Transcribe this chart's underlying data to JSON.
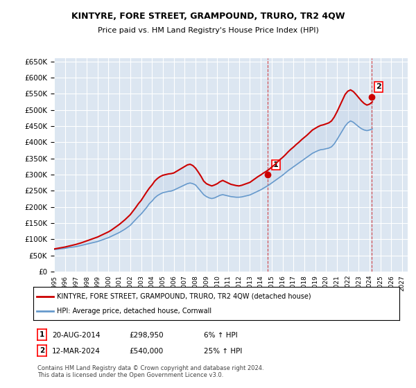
{
  "title": "KINTYRE, FORE STREET, GRAMPOUND, TRURO, TR2 4QW",
  "subtitle": "Price paid vs. HM Land Registry's House Price Index (HPI)",
  "ylim": [
    0,
    660000
  ],
  "yticks": [
    0,
    50000,
    100000,
    150000,
    200000,
    250000,
    300000,
    350000,
    400000,
    450000,
    500000,
    550000,
    600000,
    650000
  ],
  "xlim_start": 1995.0,
  "xlim_end": 2027.5,
  "xticks": [
    1995,
    1996,
    1997,
    1998,
    1999,
    2000,
    2001,
    2002,
    2003,
    2004,
    2005,
    2006,
    2007,
    2008,
    2009,
    2010,
    2011,
    2012,
    2013,
    2014,
    2015,
    2016,
    2017,
    2018,
    2019,
    2020,
    2021,
    2022,
    2023,
    2024,
    2025,
    2026,
    2027
  ],
  "background_color": "#dce6f1",
  "plot_bg_color": "#dce6f1",
  "grid_color": "#ffffff",
  "red_line_color": "#cc0000",
  "blue_line_color": "#6699cc",
  "blue_fill_color": "#b8cce4",
  "red_shade_color": "#ffcccc",
  "marker1_year": 2014.64,
  "marker1_value": 298950,
  "marker2_year": 2024.19,
  "marker2_value": 540000,
  "legend_label_red": "KINTYRE, FORE STREET, GRAMPOUND, TRURO, TR2 4QW (detached house)",
  "legend_label_blue": "HPI: Average price, detached house, Cornwall",
  "table_row1": [
    "1",
    "20-AUG-2014",
    "£298,950",
    "6% ↑ HPI"
  ],
  "table_row2": [
    "2",
    "12-MAR-2024",
    "£540,000",
    "25% ↑ HPI"
  ],
  "footnote": "Contains HM Land Registry data © Crown copyright and database right 2024.\nThis data is licensed under the Open Government Licence v3.0.",
  "hpi_years": [
    1995,
    1995.25,
    1995.5,
    1995.75,
    1996,
    1996.25,
    1996.5,
    1996.75,
    1997,
    1997.25,
    1997.5,
    1997.75,
    1998,
    1998.25,
    1998.5,
    1998.75,
    1999,
    1999.25,
    1999.5,
    1999.75,
    2000,
    2000.25,
    2000.5,
    2000.75,
    2001,
    2001.25,
    2001.5,
    2001.75,
    2002,
    2002.25,
    2002.5,
    2002.75,
    2003,
    2003.25,
    2003.5,
    2003.75,
    2004,
    2004.25,
    2004.5,
    2004.75,
    2005,
    2005.25,
    2005.5,
    2005.75,
    2006,
    2006.25,
    2006.5,
    2006.75,
    2007,
    2007.25,
    2007.5,
    2007.75,
    2008,
    2008.25,
    2008.5,
    2008.75,
    2009,
    2009.25,
    2009.5,
    2009.75,
    2010,
    2010.25,
    2010.5,
    2010.75,
    2011,
    2011.25,
    2011.5,
    2011.75,
    2012,
    2012.25,
    2012.5,
    2012.75,
    2013,
    2013.25,
    2013.5,
    2013.75,
    2014,
    2014.25,
    2014.5,
    2014.75,
    2015,
    2015.25,
    2015.5,
    2015.75,
    2016,
    2016.25,
    2016.5,
    2016.75,
    2017,
    2017.25,
    2017.5,
    2017.75,
    2018,
    2018.25,
    2018.5,
    2018.75,
    2019,
    2019.25,
    2019.5,
    2019.75,
    2020,
    2020.25,
    2020.5,
    2020.75,
    2021,
    2021.25,
    2021.5,
    2021.75,
    2022,
    2022.25,
    2022.5,
    2022.75,
    2023,
    2023.25,
    2023.5,
    2023.75,
    2024,
    2024.25
  ],
  "hpi_values": [
    68000,
    69000,
    70000,
    71000,
    72000,
    73500,
    75000,
    76000,
    77000,
    79000,
    81000,
    83000,
    85000,
    87000,
    89000,
    91000,
    93000,
    96000,
    99000,
    102000,
    105000,
    109000,
    113000,
    117000,
    121000,
    126000,
    131000,
    137000,
    143000,
    152000,
    161000,
    170000,
    178000,
    188000,
    198000,
    210000,
    218000,
    228000,
    235000,
    240000,
    244000,
    246000,
    248000,
    249000,
    252000,
    256000,
    260000,
    264000,
    268000,
    272000,
    274000,
    272000,
    268000,
    258000,
    248000,
    238000,
    232000,
    228000,
    226000,
    228000,
    232000,
    236000,
    238000,
    236000,
    234000,
    232000,
    231000,
    230000,
    230000,
    231000,
    233000,
    235000,
    237000,
    241000,
    245000,
    249000,
    253000,
    258000,
    263000,
    268000,
    274000,
    280000,
    286000,
    292000,
    298000,
    305000,
    312000,
    318000,
    324000,
    330000,
    336000,
    342000,
    348000,
    354000,
    360000,
    366000,
    370000,
    374000,
    377000,
    378000,
    380000,
    382000,
    386000,
    395000,
    408000,
    422000,
    436000,
    450000,
    460000,
    466000,
    462000,
    455000,
    448000,
    442000,
    438000,
    436000,
    438000,
    441000
  ],
  "red_years": [
    1995,
    1995.25,
    1995.5,
    1995.75,
    1996,
    1996.25,
    1996.5,
    1996.75,
    1997,
    1997.25,
    1997.5,
    1997.75,
    1998,
    1998.25,
    1998.5,
    1998.75,
    1999,
    1999.25,
    1999.5,
    1999.75,
    2000,
    2000.25,
    2000.5,
    2000.75,
    2001,
    2001.25,
    2001.5,
    2001.75,
    2002,
    2002.25,
    2002.5,
    2002.75,
    2003,
    2003.25,
    2003.5,
    2003.75,
    2004,
    2004.25,
    2004.5,
    2004.75,
    2005,
    2005.25,
    2005.5,
    2005.75,
    2006,
    2006.25,
    2006.5,
    2006.75,
    2007,
    2007.25,
    2007.5,
    2007.75,
    2008,
    2008.25,
    2008.5,
    2008.75,
    2009,
    2009.25,
    2009.5,
    2009.75,
    2010,
    2010.25,
    2010.5,
    2010.75,
    2011,
    2011.25,
    2011.5,
    2011.75,
    2012,
    2012.25,
    2012.5,
    2012.75,
    2013,
    2013.25,
    2013.5,
    2013.75,
    2014,
    2014.25,
    2014.5,
    2014.75,
    2015,
    2015.25,
    2015.5,
    2015.75,
    2016,
    2016.25,
    2016.5,
    2016.75,
    2017,
    2017.25,
    2017.5,
    2017.75,
    2018,
    2018.25,
    2018.5,
    2018.75,
    2019,
    2019.25,
    2019.5,
    2019.75,
    2020,
    2020.25,
    2020.5,
    2020.75,
    2021,
    2021.25,
    2021.5,
    2021.75,
    2022,
    2022.25,
    2022.5,
    2022.75,
    2023,
    2023.25,
    2023.5,
    2023.75,
    2024,
    2024.25
  ],
  "red_values": [
    70000,
    71500,
    73000,
    74500,
    76000,
    78000,
    80000,
    82000,
    84000,
    86500,
    89000,
    92000,
    95000,
    98000,
    101000,
    104000,
    107000,
    111000,
    115000,
    119000,
    123000,
    128000,
    134000,
    140000,
    146000,
    153000,
    160000,
    168000,
    176000,
    187000,
    198000,
    210000,
    220000,
    233000,
    246000,
    258000,
    268000,
    280000,
    288000,
    294000,
    298000,
    300000,
    302000,
    303000,
    305000,
    310000,
    315000,
    320000,
    325000,
    330000,
    332000,
    328000,
    320000,
    308000,
    295000,
    280000,
    272000,
    268000,
    265000,
    268000,
    272000,
    278000,
    282000,
    278000,
    274000,
    270000,
    268000,
    266000,
    265000,
    267000,
    270000,
    273000,
    276000,
    282000,
    288000,
    294000,
    299000,
    305000,
    310000,
    316000,
    323000,
    330000,
    338000,
    346000,
    353000,
    361000,
    370000,
    378000,
    385000,
    393000,
    400000,
    408000,
    415000,
    422000,
    430000,
    438000,
    443000,
    448000,
    452000,
    454000,
    457000,
    460000,
    466000,
    478000,
    494000,
    512000,
    530000,
    548000,
    558000,
    562000,
    557000,
    548000,
    538000,
    528000,
    520000,
    515000,
    518000,
    525000
  ]
}
